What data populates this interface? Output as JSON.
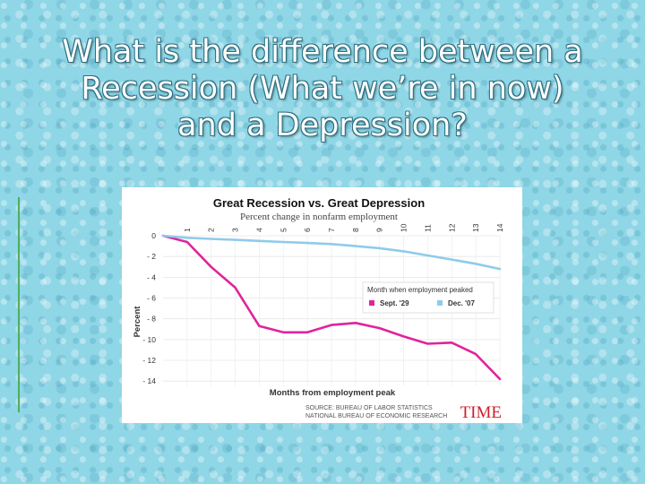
{
  "slide": {
    "title_lines": [
      "What is the difference between a",
      "Recession (What we’re in now)",
      "and a Depression?"
    ]
  },
  "chart_data": {
    "type": "line",
    "title": "Great Recession vs. Great Depression",
    "subtitle": "Percent change in nonfarm employment",
    "xlabel": "Months from employment peak",
    "ylabel": "Percent",
    "x": [
      0,
      1,
      2,
      3,
      4,
      5,
      6,
      7,
      8,
      9,
      10,
      11,
      12,
      13,
      14
    ],
    "x_tick_labels": [
      "1",
      "2",
      "3",
      "4",
      "5",
      "6",
      "7",
      "8",
      "9",
      "10",
      "11",
      "12",
      "13",
      "14"
    ],
    "y_ticks": [
      0,
      -2,
      -4,
      -6,
      -8,
      -10,
      -12,
      -14
    ],
    "y_tick_labels": [
      "0",
      "- 2",
      "- 4",
      "- 6",
      "- 8",
      "- 10",
      "- 12",
      "- 14"
    ],
    "xlim": [
      0,
      14
    ],
    "ylim": [
      -14.5,
      0
    ],
    "series": [
      {
        "name": "Sept. '29",
        "color": "#e0249c",
        "values": [
          0,
          -0.6,
          -3.0,
          -5.0,
          -8.7,
          -9.3,
          -9.3,
          -8.6,
          -8.4,
          -8.9,
          -9.7,
          -10.4,
          -10.3,
          -11.4,
          -13.8
        ]
      },
      {
        "name": "Dec. '07",
        "color": "#8fcbeb",
        "values": [
          0,
          -0.2,
          -0.3,
          -0.4,
          -0.5,
          -0.6,
          -0.7,
          -0.8,
          -1.0,
          -1.2,
          -1.5,
          -1.9,
          -2.3,
          -2.7,
          -3.2
        ]
      }
    ],
    "legend": {
      "title": "Month when employment peaked",
      "placement": "right-middle"
    },
    "source_lines": [
      "SOURCE: BUREAU OF LABOR STATISTICS",
      "NATIONAL BUREAU OF ECONOMIC RESEARCH"
    ],
    "brand": "TIME",
    "brand_color": "#d01e2a"
  }
}
